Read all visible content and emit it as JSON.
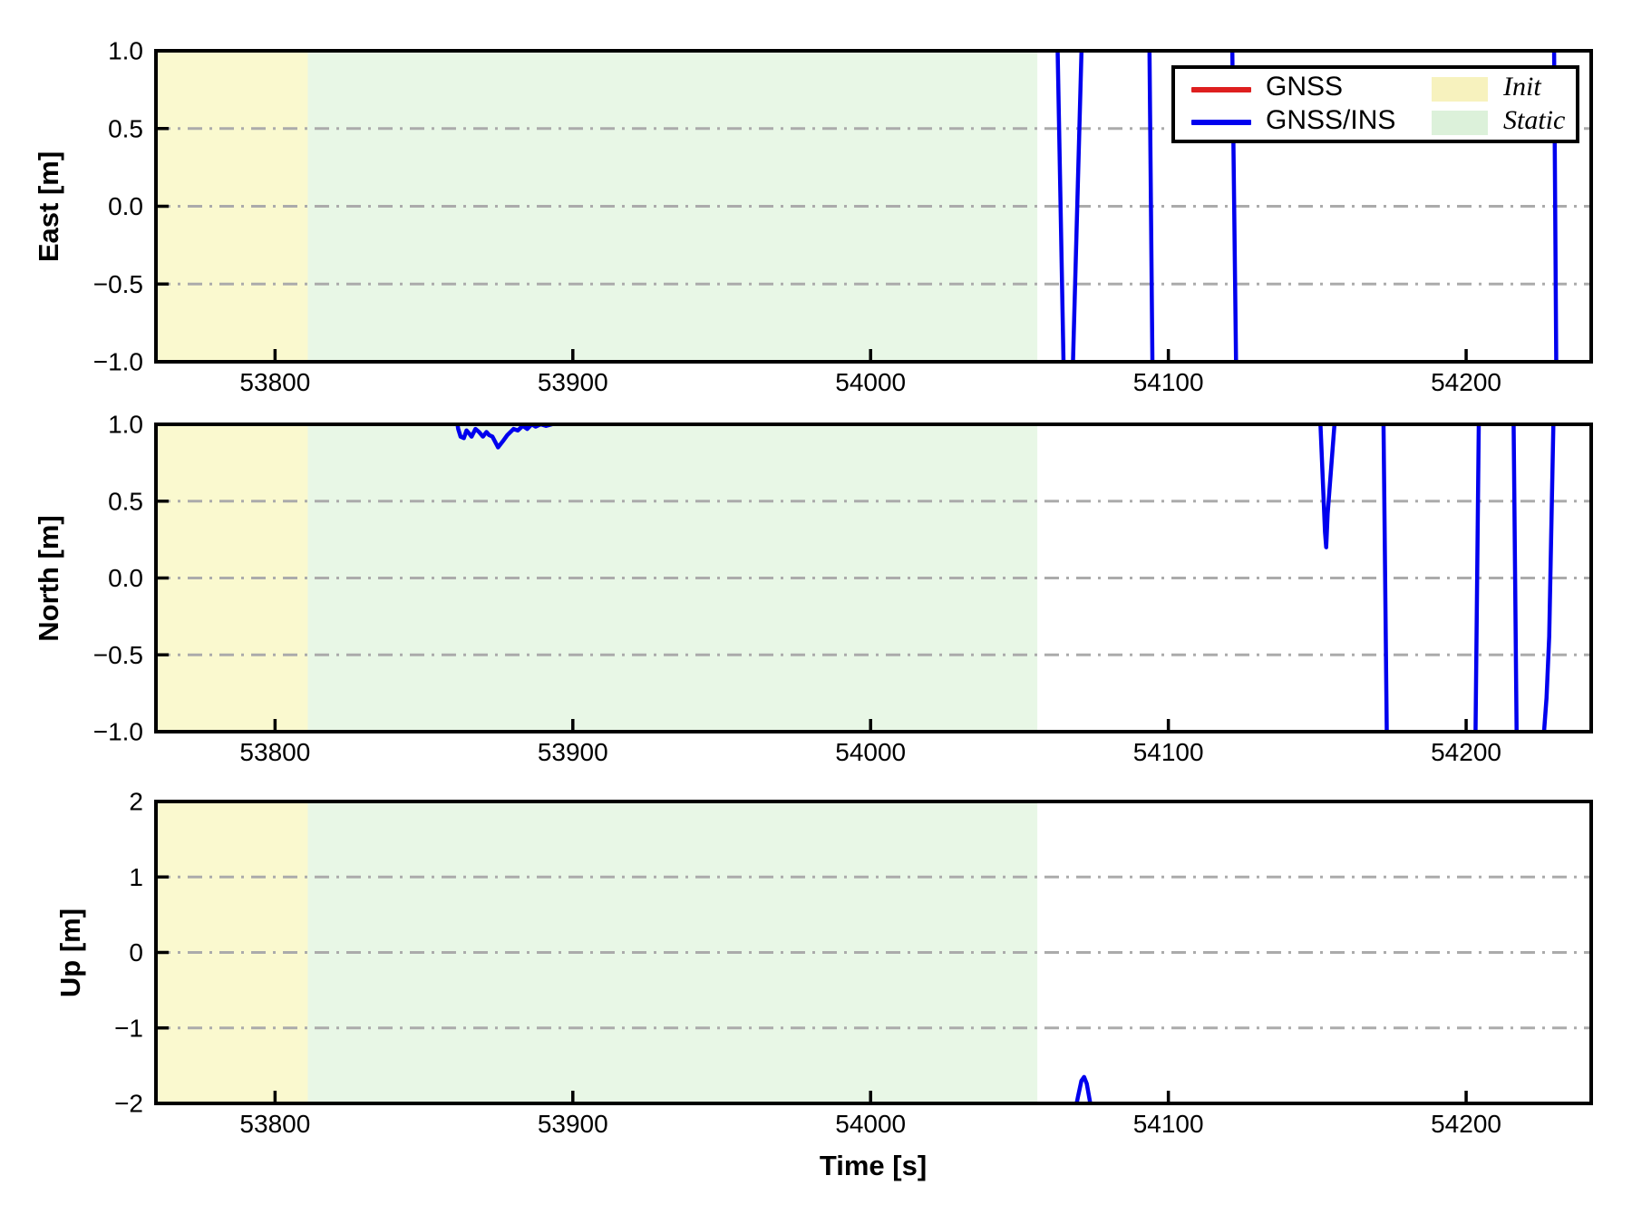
{
  "figure": {
    "background": "#ffffff"
  },
  "chart_data": {
    "type": "line",
    "title": "",
    "xlabel": "Time [s]",
    "xlim": [
      53760,
      54242
    ],
    "xticks": [
      53800,
      53900,
      54000,
      54100,
      54200
    ],
    "xtick_labels": [
      "53800",
      "53900",
      "54000",
      "54100",
      "54200"
    ],
    "grid": {
      "style": "dash-dot",
      "color": "#ABABAB",
      "on": true
    },
    "regions": [
      {
        "name": "Init",
        "x0": 53760,
        "x1": 53811,
        "color": "#FAF9CF"
      },
      {
        "name": "Static",
        "x0": 53811,
        "x1": 54056,
        "color": "#E8F7E6"
      }
    ],
    "subplots": [
      {
        "ylabel": "East [m]",
        "ylim": [
          -1.0,
          1.0
        ],
        "yticks": [
          1.0,
          0.5,
          0.0,
          -0.5,
          -1.0
        ],
        "ytick_labels": [
          "1.0",
          "0.5",
          "0.0",
          "−0.5",
          "−1.0"
        ],
        "grid_y": [
          0.5,
          0.0,
          -0.5
        ],
        "series": [
          {
            "name": "GNSS",
            "color": "#DE1F1F",
            "segments": []
          },
          {
            "name": "GNSS/INS",
            "color": "#0000EE",
            "segments": [
              [
                [
                  54062.7,
                  1.12
                ],
                [
                  54064.9,
                  -1.12
                ]
              ],
              [
                [
                  54067.8,
                  -1.12
                ],
                [
                  54071.0,
                  1.12
                ]
              ],
              [
                [
                  54093.6,
                  1.12
                ],
                [
                  54094.7,
                  -1.12
                ]
              ],
              [
                [
                  54121.4,
                  1.12
                ],
                [
                  54122.8,
                  -1.12
                ]
              ],
              [
                [
                  54229.5,
                  1.12
                ],
                [
                  54230.3,
                  -1.12
                ]
              ]
            ]
          }
        ]
      },
      {
        "ylabel": "North [m]",
        "ylim": [
          -1.0,
          1.0
        ],
        "yticks": [
          1.0,
          0.5,
          0.0,
          -0.5,
          -1.0
        ],
        "ytick_labels": [
          "1.0",
          "0.5",
          "0.0",
          "−0.5",
          "−1.0"
        ],
        "grid_y": [
          0.5,
          0.0,
          -0.5
        ],
        "series": [
          {
            "name": "GNSS",
            "color": "#DE1F1F",
            "segments": []
          },
          {
            "name": "GNSS/INS",
            "color": "#0000EE",
            "segments": [
              [
                [
                  53860.8,
                  1.06
                ],
                [
                  53861.5,
                  0.97
                ],
                [
                  53862.3,
                  0.92
                ],
                [
                  53863.4,
                  0.91
                ],
                [
                  53864.3,
                  0.96
                ],
                [
                  53865.2,
                  0.94
                ],
                [
                  53866.0,
                  0.92
                ],
                [
                  53867.3,
                  0.97
                ],
                [
                  53868.5,
                  0.95
                ],
                [
                  53869.8,
                  0.92
                ],
                [
                  53871.0,
                  0.95
                ],
                [
                  53871.9,
                  0.93
                ],
                [
                  53873.0,
                  0.92
                ],
                [
                  53874.9,
                  0.85
                ],
                [
                  53876.5,
                  0.89
                ],
                [
                  53878.0,
                  0.93
                ],
                [
                  53880.1,
                  0.97
                ],
                [
                  53881.5,
                  0.96
                ],
                [
                  53883.2,
                  0.99
                ],
                [
                  53884.7,
                  0.97
                ],
                [
                  53886.2,
                  1.0
                ],
                [
                  53887.5,
                  0.985
                ],
                [
                  53889.2,
                  1.0
                ],
                [
                  53891.0,
                  0.99
                ],
                [
                  53893.0,
                  1.0
                ],
                [
                  53894.5,
                  1.05
                ]
              ],
              [
                [
                  54150.9,
                  1.08
                ],
                [
                  54152.6,
                  0.3
                ],
                [
                  54153.0,
                  0.2
                ],
                [
                  54153.5,
                  0.42
                ],
                [
                  54156.1,
                  1.08
                ]
              ],
              [
                [
                  54172.2,
                  1.1
                ],
                [
                  54173.4,
                  -1.1
                ]
              ],
              [
                [
                  54203.1,
                  -1.1
                ],
                [
                  54204.3,
                  1.1
                ]
              ],
              [
                [
                  54215.9,
                  1.1
                ],
                [
                  54217.0,
                  -1.1
                ]
              ],
              [
                [
                  54225.5,
                  -1.08
                ],
                [
                  54226.2,
                  -0.99
                ],
                [
                  54227.0,
                  -0.78
                ],
                [
                  54227.9,
                  -0.38
                ],
                [
                  54229.4,
                  1.1
                ]
              ]
            ]
          }
        ]
      },
      {
        "ylabel": "Up [m]",
        "ylim": [
          -2,
          2
        ],
        "yticks": [
          2,
          1,
          0,
          -1,
          -2
        ],
        "ytick_labels": [
          "2",
          "1",
          "0",
          "−1",
          "−2"
        ],
        "grid_y": [
          1,
          0,
          -1
        ],
        "series": [
          {
            "name": "GNSS",
            "color": "#DE1F1F",
            "segments": []
          },
          {
            "name": "GNSS/INS",
            "color": "#0000EE",
            "segments": [
              [
                [
                  54068.6,
                  -2.12
                ],
                [
                  54069.6,
                  -1.92
                ],
                [
                  54070.8,
                  -1.7
                ],
                [
                  54071.7,
                  -1.65
                ],
                [
                  54072.6,
                  -1.74
                ],
                [
                  54073.6,
                  -1.96
                ],
                [
                  54074.3,
                  -2.12
                ]
              ]
            ]
          }
        ]
      }
    ],
    "legend": {
      "series": [
        {
          "label": "GNSS",
          "color": "#DE1F1F"
        },
        {
          "label": "GNSS/INS",
          "color": "#0000EE"
        }
      ],
      "patches": [
        {
          "label": "Init",
          "color": "#F7F2BE"
        },
        {
          "label": "Static",
          "color": "#DCF1DA"
        }
      ]
    }
  }
}
